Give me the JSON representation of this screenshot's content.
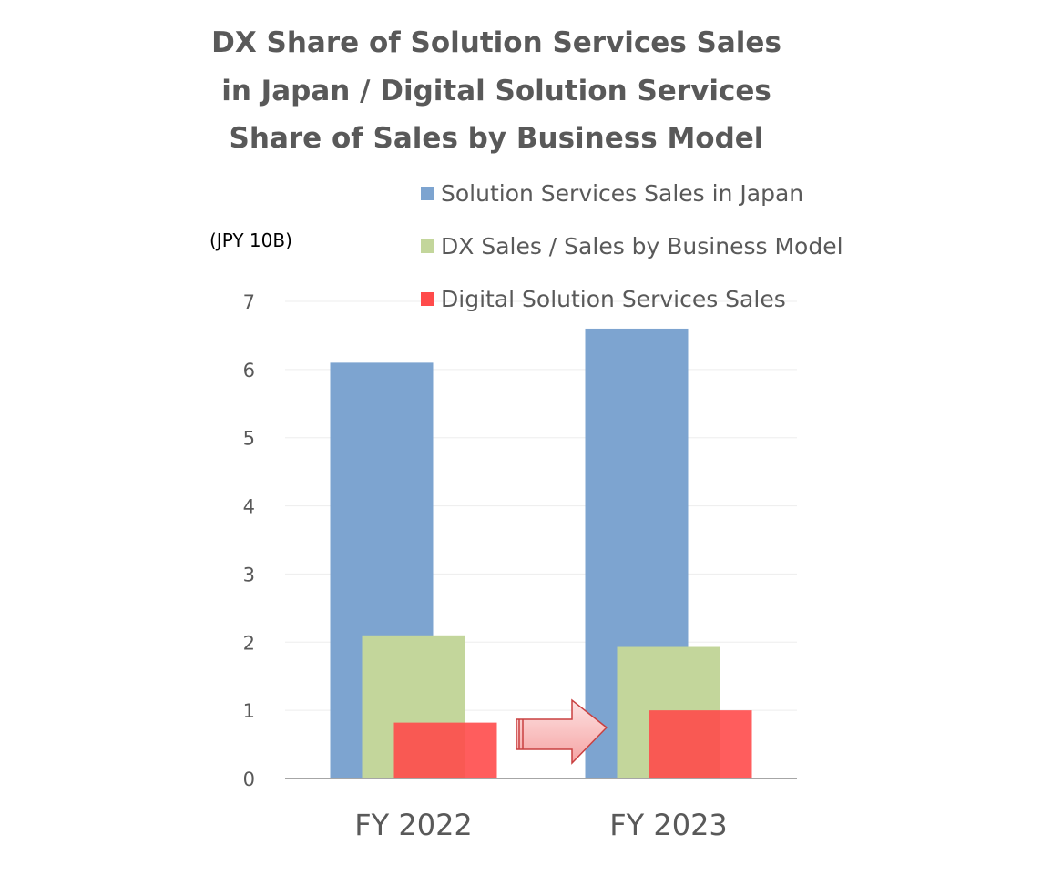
{
  "chart_data": {
    "type": "bar",
    "title_lines": [
      "DX Share of Solution Services Sales",
      "in Japan / Digital Solution Services",
      "Share of Sales by Business Model"
    ],
    "unit_label": "(JPY 10B)",
    "categories": [
      "FY 2022",
      "FY 2023"
    ],
    "series": [
      {
        "name": "Solution Services Sales in Japan",
        "values": [
          6.1,
          6.6
        ],
        "color": "#7da4d0"
      },
      {
        "name": "DX Sales / Sales by Business Model",
        "values": [
          2.1,
          1.93
        ],
        "color": "#c3d69b"
      },
      {
        "name": "Digital Solution Services Sales",
        "values": [
          0.82,
          1.0
        ],
        "color": "#ff4b4b"
      }
    ],
    "ylim": [
      0,
      7
    ],
    "yticks": [
      0,
      1,
      2,
      3,
      4,
      5,
      6,
      7
    ],
    "grid": true,
    "legend_position": "top-right",
    "annotations": [
      {
        "type": "arrow",
        "from": "FY 2022",
        "to": "FY 2023",
        "series": "Digital Solution Services Sales",
        "color": "#f4a6a6"
      }
    ]
  }
}
